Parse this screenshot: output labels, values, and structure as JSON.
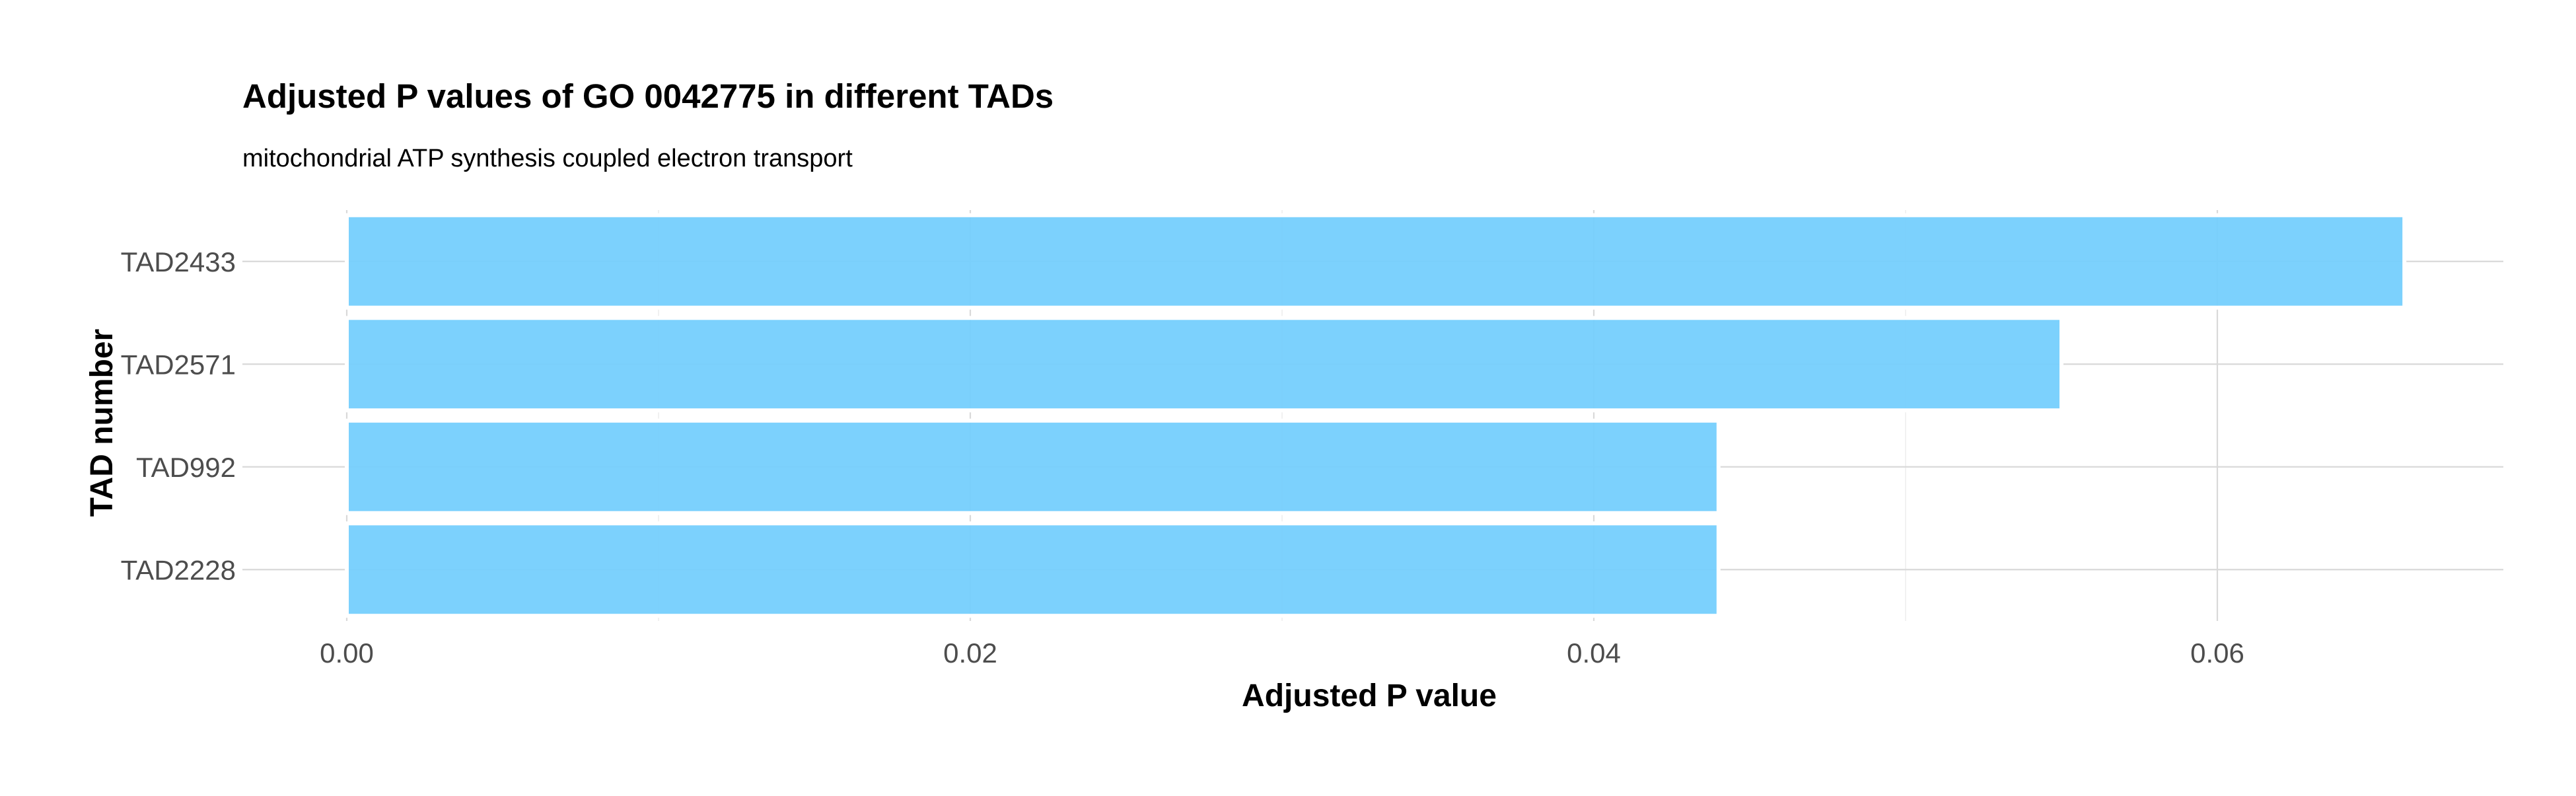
{
  "chart_data": {
    "type": "bar",
    "orientation": "horizontal",
    "title": "Adjusted P values of GO 0042775 in different TADs",
    "subtitle": "mitochondrial ATP synthesis coupled electron transport",
    "xlabel": "Adjusted P value",
    "ylabel": "TAD number",
    "categories": [
      "TAD2433",
      "TAD2571",
      "TAD992",
      "TAD2228"
    ],
    "values": [
      0.066,
      0.055,
      0.044,
      0.044
    ],
    "xlim": [
      0,
      0.0693
    ],
    "xticks": [
      0.0,
      0.02,
      0.04,
      0.06
    ],
    "xtick_labels": [
      "0.00",
      "0.02",
      "0.04",
      "0.06"
    ],
    "grid": true,
    "legend": "none",
    "colors": {
      "bar_fill": "#75CFFD",
      "bar_outline": "#ffffff"
    }
  }
}
